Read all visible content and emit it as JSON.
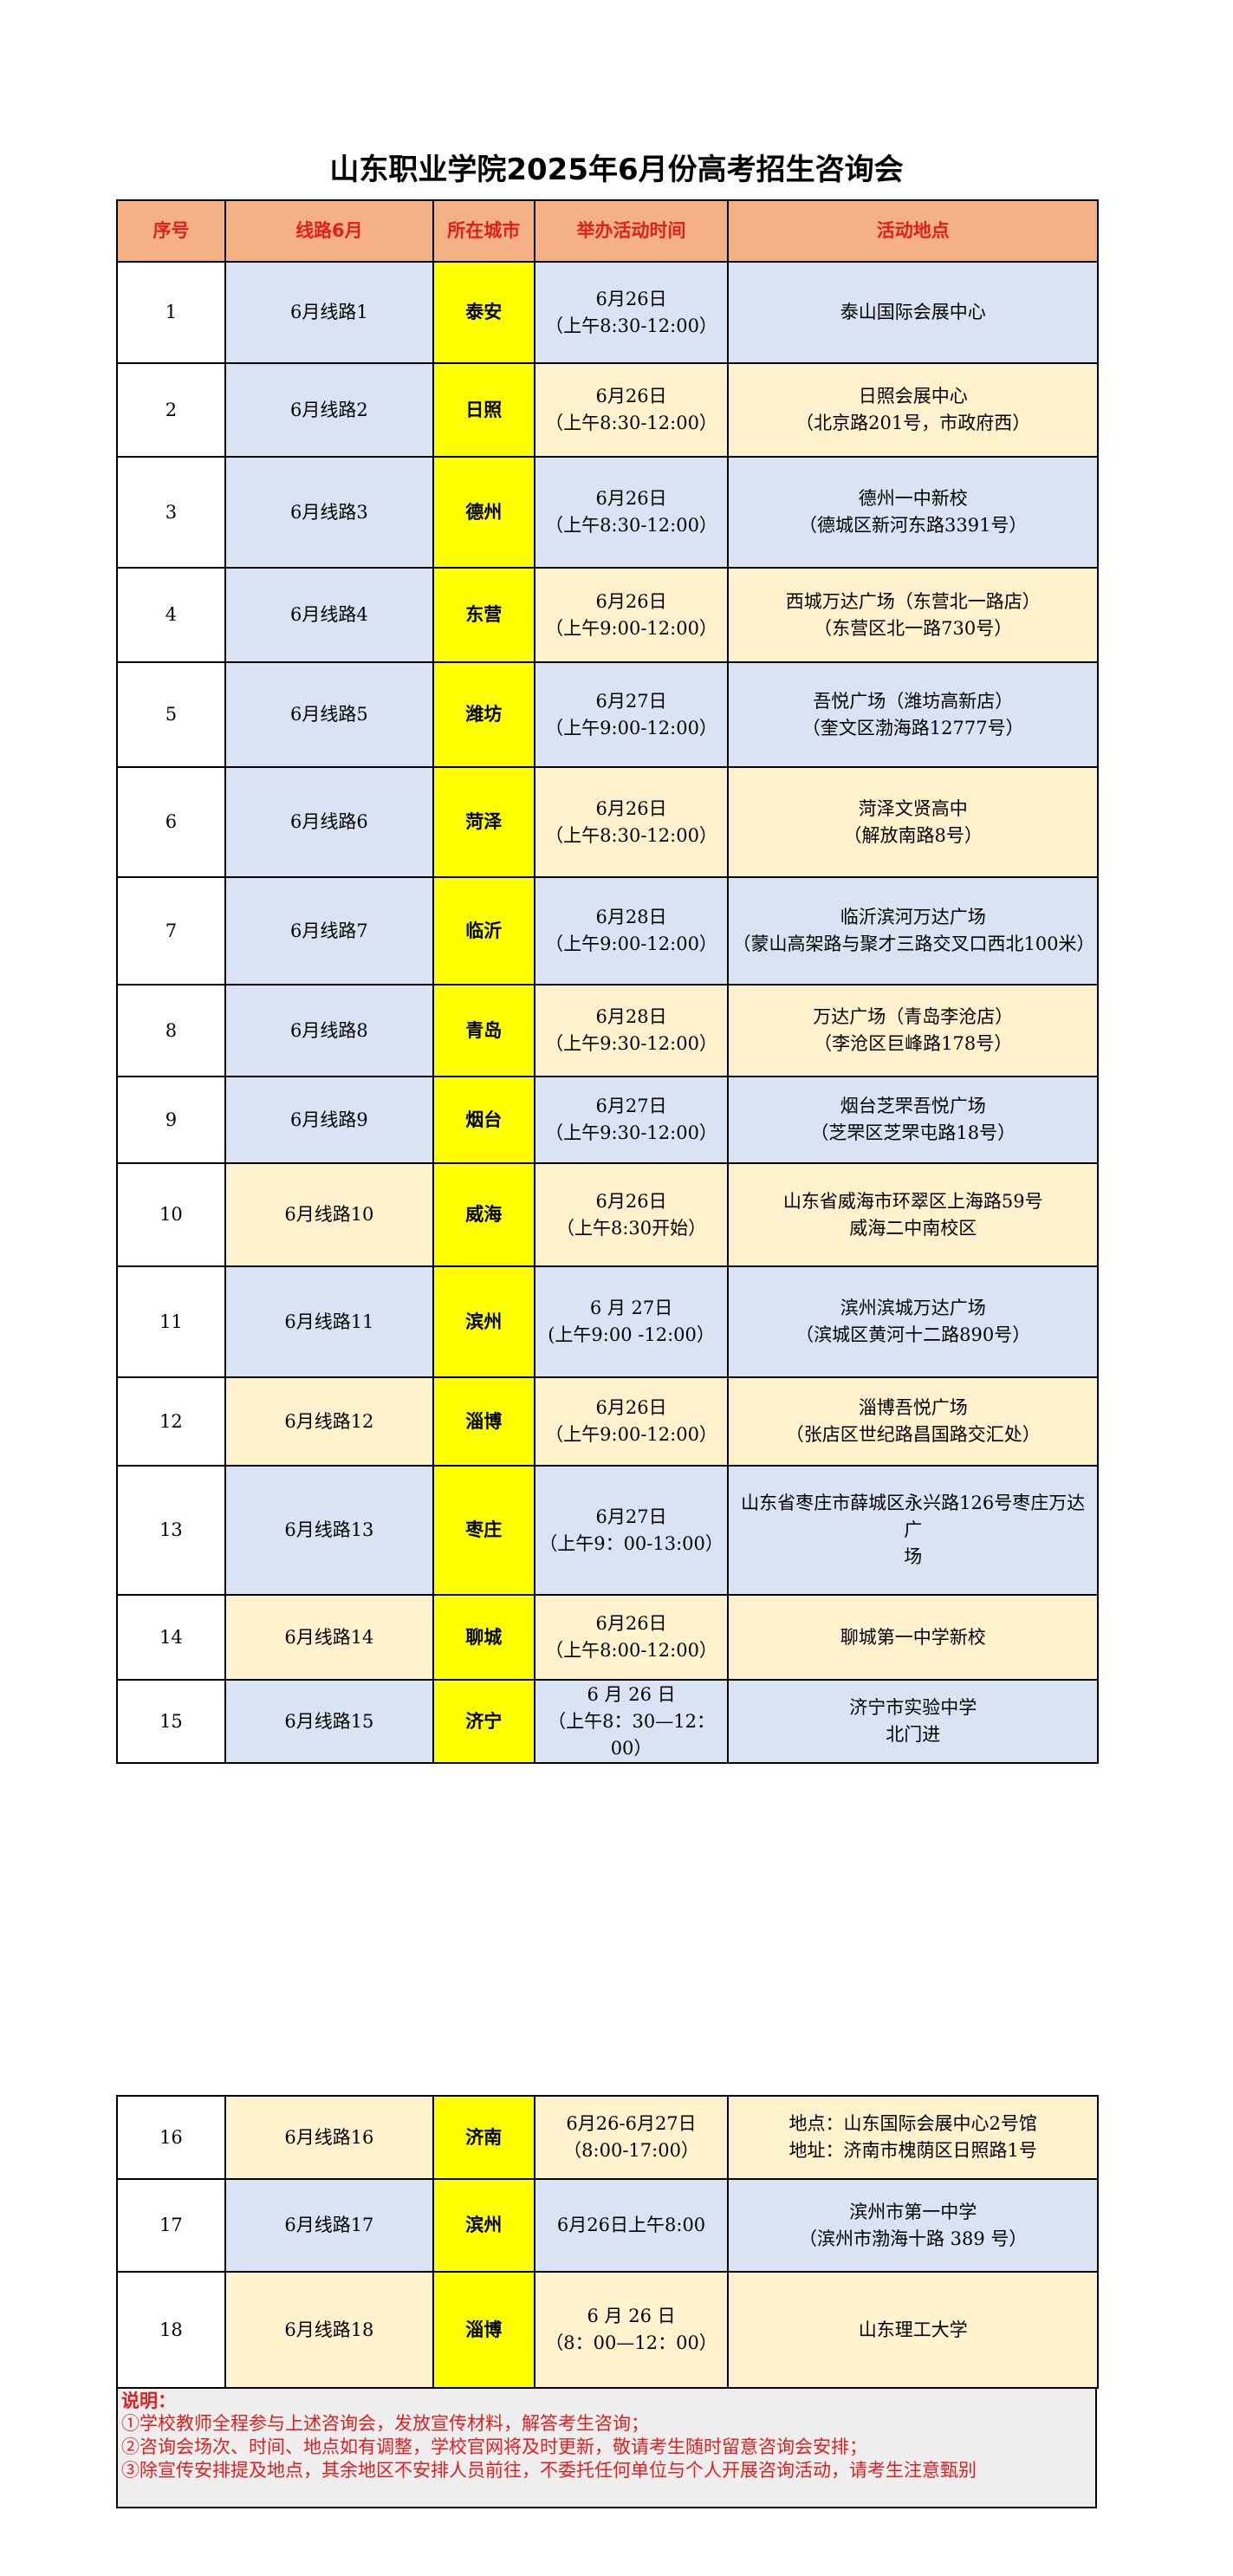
{
  "title": "山东职业学院2025年6月份高考招生咨询会",
  "header": [
    "序号",
    "线路6月",
    "所在城市",
    "举办活动时间",
    "活动地点"
  ],
  "rows": [
    [
      "1",
      "6月线路1",
      "泰安",
      [
        "6月26日",
        "（上午8:30-12:00）"
      ],
      [
        "泰山国际会展中心"
      ]
    ],
    [
      "2",
      "6月线路2",
      "日照",
      [
        "6月26日",
        "（上午8:30-12:00）"
      ],
      [
        "日照会展中心",
        "（北京路201号，市政府西）"
      ]
    ],
    [
      "3",
      "6月线路3",
      "德州",
      [
        "6月26日",
        "（上午8:30-12:00）"
      ],
      [
        "德州一中新校",
        "（德城区新河东路3391号）"
      ]
    ],
    [
      "4",
      "6月线路4",
      "东营",
      [
        "6月26日",
        "（上午9:00-12:00）"
      ],
      [
        "西城万达广场（东营北一路店）",
        "（东营区北一路730号）"
      ]
    ],
    [
      "5",
      "6月线路5",
      "潍坊",
      [
        "6月27日",
        "（上午9:00-12:00）"
      ],
      [
        "吾悦广场（潍坊高新店）",
        "（奎文区渤海路12777号）"
      ]
    ],
    [
      "6",
      "6月线路6",
      "菏泽",
      [
        "6月26日",
        "（上午8:30-12:00）"
      ],
      [
        "菏泽文贤高中",
        "（解放南路8号）"
      ]
    ],
    [
      "7",
      "6月线路7",
      "临沂",
      [
        "6月28日",
        "（上午9:00-12:00）"
      ],
      [
        "临沂滨河万达广场",
        "（蒙山高架路与聚才三路交叉口西北100米）"
      ]
    ],
    [
      "8",
      "6月线路8",
      "青岛",
      [
        "6月28日",
        "（上午9:30-12:00）"
      ],
      [
        "万达广场（青岛李沧店）",
        "（李沧区巨峰路178号）"
      ]
    ],
    [
      "9",
      "6月线路9",
      "烟台",
      [
        "6月27日",
        "（上午9:30-12:00）"
      ],
      [
        "烟台芝罘吾悦广场",
        "（芝罘区芝罘屯路18号）"
      ]
    ],
    [
      "10",
      "6月线路10",
      "威海",
      [
        "6月26日",
        "（上午8:30开始）"
      ],
      [
        "山东省威海市环翠区上海路59号",
        "威海二中南校区"
      ]
    ],
    [
      "11",
      "6月线路11",
      "滨州",
      [
        "6 月 27日",
        "(上午9:00 -12:00）"
      ],
      [
        "滨州滨城万达广场",
        "（滨城区黄河十二路890号）"
      ]
    ],
    [
      "12",
      "6月线路12",
      "淄博",
      [
        "6月26日",
        "（上午9:00-12:00）"
      ],
      [
        "淄博吾悦广场",
        "（张店区世纪路昌国路交汇处）"
      ]
    ],
    [
      "13",
      "6月线路13",
      "枣庄",
      [
        "6月27日",
        "（上午9：00-13:00）"
      ],
      [
        "山东省枣庄市薛城区永兴路126号枣庄万达广",
        "场"
      ]
    ],
    [
      "14",
      "6月线路14",
      "聊城",
      [
        "6月26日",
        "（上午8:00-12:00）"
      ],
      [
        "聊城第一中学新校"
      ]
    ],
    [
      "15",
      "6月线路15",
      "济宁",
      [
        "6 月 26 日",
        "（上午8：30—12：",
        "00）"
      ],
      [
        "济宁市实验中学",
        "北门进"
      ]
    ],
    [
      "16",
      "6月线路16",
      "济南",
      [
        "6月26-6月27日",
        "（8:00-17:00）"
      ],
      [
        "地点：山东国际会展中心2号馆",
        "地址：济南市槐荫区日照路1号"
      ]
    ],
    [
      "17",
      "6月线路17",
      "滨州",
      [
        "6月26日上午8:00"
      ],
      [
        "滨州市第一中学",
        "（滨州市渤海十路 389 号）"
      ]
    ],
    [
      "18",
      "6月线路18",
      "淄博",
      [
        "6 月 26 日",
        "（8：00—12：00）"
      ],
      [
        "山东理工大学"
      ]
    ]
  ],
  "notes": {
    "heading": "说明：",
    "items": [
      "①学校教师全程参与上述咨询会，发放宣传材料，解答考生咨询；",
      "②咨询会场次、时间、地点如有调整，学校官网将及时更新，敬请考生随时留意咨询会安排；",
      "③除宣传安排提及地点，其余地区不安排人员前往，不委托任何单位与个人开展咨询活动，请考生注意甄别"
    ]
  }
}
